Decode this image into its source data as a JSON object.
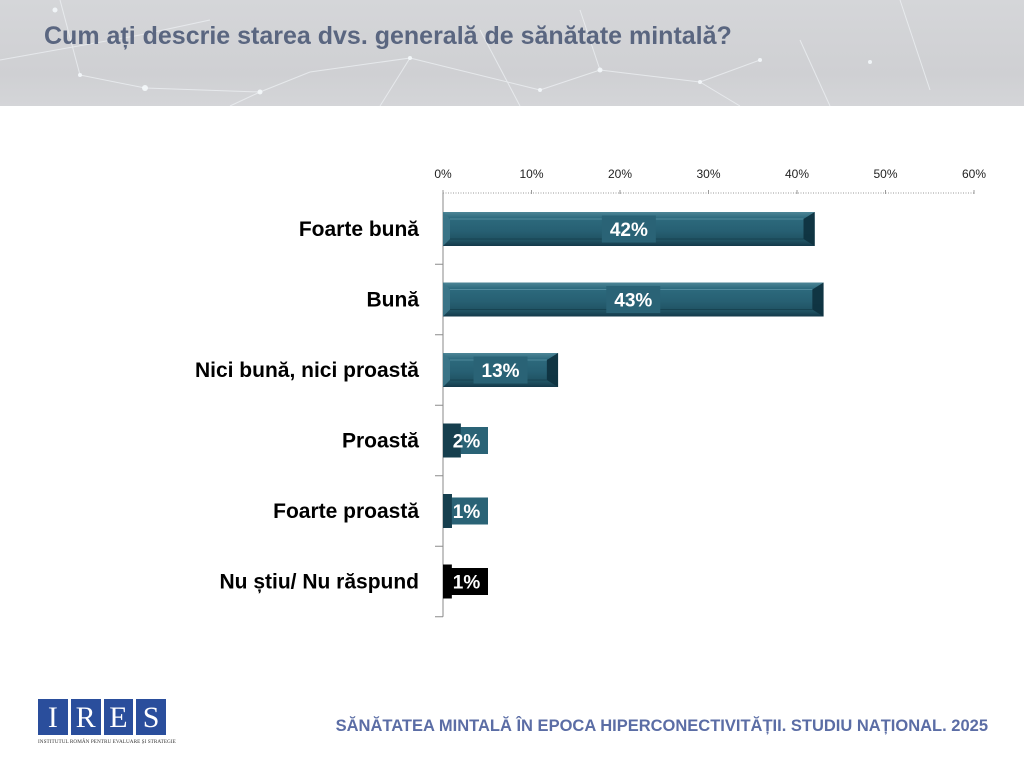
{
  "header": {
    "title": "Cum ați descrie starea dvs. generală de sănătate mintală?"
  },
  "footer": {
    "study_title": "SĂNĂTATEA MINTALĂ ÎN EPOCA HIPERCONECTIVITĂȚII. STUDIU NAȚIONAL. 2025",
    "logo": {
      "letters": [
        "I",
        "R",
        "E",
        "S"
      ],
      "subtitle": "INSTITUTUL ROMÂN PENTRU EVALUARE ȘI STRATEGIE",
      "color": "#2a4e9c"
    }
  },
  "colors": {
    "bar_primary": "#2a6376",
    "bar_dark": "#0f3340",
    "bar_black": "#000000",
    "title": "#5a6680",
    "footer": "#5b6da5"
  },
  "chart_data": {
    "type": "bar",
    "orientation": "horizontal",
    "title": "Cum ați descrie starea dvs. generală de sănătate mintală?",
    "xlabel": "",
    "ylabel": "",
    "categories": [
      "Foarte bună",
      "Bună",
      "Nici bună, nici proastă",
      "Proastă",
      "Foarte proastă",
      "Nu știu/ Nu răspund"
    ],
    "values": [
      42,
      43,
      13,
      2,
      1,
      1
    ],
    "data_labels": [
      "42%",
      "43%",
      "13%",
      "2%",
      "1%",
      "1%"
    ],
    "bar_colors": [
      "#2a6376",
      "#2a6376",
      "#2a6376",
      "#2a6376",
      "#2a6376",
      "#000000"
    ],
    "xlim": [
      0,
      60
    ],
    "x_ticks": [
      0,
      10,
      20,
      30,
      40,
      50,
      60
    ],
    "x_tick_labels": [
      "0%",
      "10%",
      "20%",
      "30%",
      "40%",
      "50%",
      "60%"
    ],
    "x_axis_position": "top",
    "grid": false,
    "legend": "none"
  }
}
